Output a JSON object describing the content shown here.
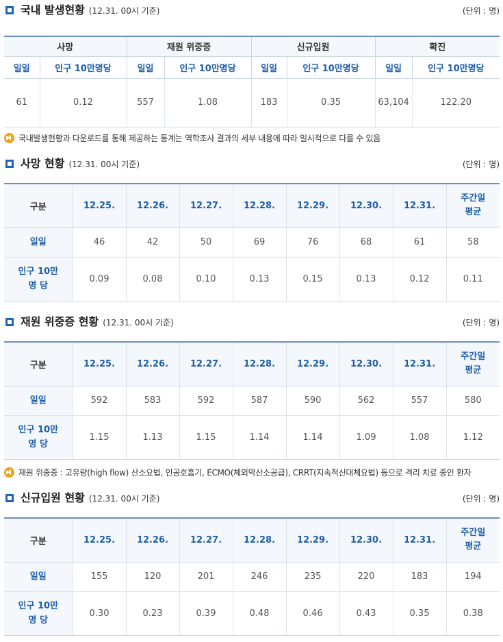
{
  "colors": {
    "accent": "#1f67b1",
    "header_bg": "#f4f7fb",
    "note_icon": "#f0a21a"
  },
  "domestic": {
    "title": "국내 발생현황",
    "base": "(12.31. 00시 기준)",
    "unit": "(단위 : 명)",
    "groups": [
      "사망",
      "재원 위중증",
      "신규입원",
      "확진"
    ],
    "sub_daily": "일일",
    "sub_per100k": "인구 10만명당",
    "values": [
      "61",
      "0.12",
      "557",
      "1.08",
      "183",
      "0.35",
      "63,104",
      "122.20"
    ],
    "note": "국내발생현황과 다운로드를 통해 제공하는 통계는 역학조사 결과의 세부 내용에 따라 일시적으로 다를 수 있음"
  },
  "death": {
    "title": "사망 현황",
    "base": "(12.31. 00시 기준)",
    "unit": "(단위 : 명)",
    "gubun": "구분",
    "dates": [
      "12.25.",
      "12.26.",
      "12.27.",
      "12.28.",
      "12.29.",
      "12.30.",
      "12.31."
    ],
    "avg_line1": "주간일",
    "avg_line2": "평균",
    "row1_label": "일일",
    "row1": [
      "46",
      "42",
      "50",
      "69",
      "76",
      "68",
      "61",
      "58"
    ],
    "row2_label_line1": "인구 10만",
    "row2_label_line2": "명 당",
    "row2": [
      "0.09",
      "0.08",
      "0.10",
      "0.13",
      "0.15",
      "0.13",
      "0.12",
      "0.11"
    ]
  },
  "severe": {
    "title": "재원 위중증 현황",
    "base": "(12.31. 00시 기준)",
    "unit": "(단위 : 명)",
    "gubun": "구분",
    "dates": [
      "12.25.",
      "12.26.",
      "12.27.",
      "12.28.",
      "12.29.",
      "12.30.",
      "12.31."
    ],
    "avg_line1": "주간일",
    "avg_line2": "평균",
    "row1_label": "일일",
    "row1": [
      "592",
      "583",
      "592",
      "587",
      "590",
      "562",
      "557",
      "580"
    ],
    "row2_label_line1": "인구 10만",
    "row2_label_line2": "명 당",
    "row2": [
      "1.15",
      "1.13",
      "1.15",
      "1.14",
      "1.14",
      "1.09",
      "1.08",
      "1.12"
    ],
    "note": "재원 위중증 : 고유량(high flow) 산소요법, 인공호흡기, ECMO(체외막산소공급), CRRT(지속적신대체요법) 등으로 격리 치료 중인 환자"
  },
  "admission": {
    "title": "신규입원 현황",
    "base": "(12.31. 00시 기준)",
    "unit": "(단위 : 명)",
    "gubun": "구분",
    "dates": [
      "12.25.",
      "12.26.",
      "12.27.",
      "12.28.",
      "12.29.",
      "12.30.",
      "12.31."
    ],
    "avg_line1": "주간일",
    "avg_line2": "평균",
    "row1_label": "일일",
    "row1": [
      "155",
      "120",
      "201",
      "246",
      "235",
      "220",
      "183",
      "194"
    ],
    "row2_label_line1": "인구 10만",
    "row2_label_line2": "명 당",
    "row2": [
      "0.30",
      "0.23",
      "0.39",
      "0.48",
      "0.46",
      "0.43",
      "0.35",
      "0.38"
    ]
  }
}
